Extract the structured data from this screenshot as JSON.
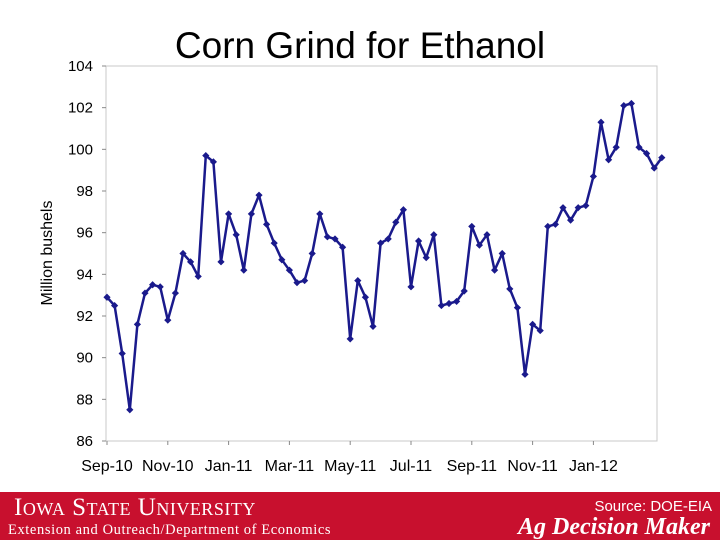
{
  "chart_data": {
    "type": "line",
    "title": "Corn Grind for Ethanol",
    "xlabel": "",
    "ylabel": "Million bushels",
    "ylim": [
      86,
      104
    ],
    "yticks": [
      86,
      88,
      90,
      92,
      94,
      96,
      98,
      100,
      102,
      104
    ],
    "grid": false,
    "legend": "none",
    "x_tick_labels": [
      "Sep-10",
      "Nov-10",
      "Jan-11",
      "Mar-11",
      "May-11",
      "Jul-11",
      "Sep-11",
      "Nov-11",
      "Jan-12"
    ],
    "series": [
      {
        "color": "#1a1a8c",
        "values": [
          92.9,
          92.5,
          90.2,
          87.5,
          91.6,
          93.1,
          93.5,
          93.4,
          91.8,
          93.1,
          95.0,
          94.6,
          93.9,
          99.7,
          99.4,
          94.6,
          96.9,
          95.9,
          94.2,
          96.9,
          97.8,
          96.4,
          95.5,
          94.7,
          94.2,
          93.6,
          93.7,
          95.0,
          96.9,
          95.8,
          95.7,
          95.3,
          90.9,
          93.7,
          92.9,
          91.5,
          95.5,
          95.7,
          96.5,
          97.1,
          93.4,
          95.6,
          94.8,
          95.9,
          92.5,
          92.6,
          92.7,
          93.2,
          96.3,
          95.4,
          95.9,
          94.2,
          95.0,
          93.3,
          92.4,
          89.2,
          91.6,
          91.3,
          96.3,
          96.4,
          97.2,
          96.6,
          97.2,
          97.3,
          98.7,
          101.3,
          99.5,
          100.1,
          102.1,
          102.2,
          100.1,
          99.8,
          99.1,
          99.6
        ]
      }
    ]
  },
  "footer": {
    "university": "Iowa State University",
    "department": "Extension and Outreach/Department of Economics",
    "source": "Source: DOE-EIA",
    "brand": "Ag Decision Maker"
  }
}
